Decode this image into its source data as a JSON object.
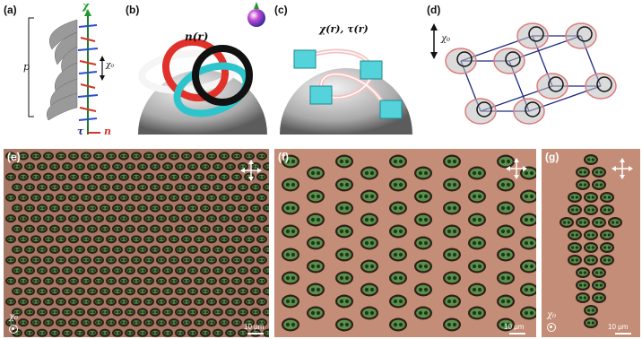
{
  "panels": {
    "a": {
      "label": "(a)",
      "chi": "χ",
      "chi0": "χ₀",
      "p": "p",
      "tau": "τ",
      "n": "n"
    },
    "b": {
      "label": "(b)",
      "title": "n(r)"
    },
    "c": {
      "label": "(c)",
      "title": "χ(r), τ(r)"
    },
    "d": {
      "label": "(d)",
      "chi0": "χ₀"
    },
    "e": {
      "label": "(e)",
      "chi0": "χ₀",
      "scale": "10 μm"
    },
    "f": {
      "label": "(f)",
      "scale": "10 μm"
    },
    "g": {
      "label": "(g)",
      "chi0": "χ₀",
      "scale": "10 μm"
    }
  },
  "colors": {
    "micro_bg": "#b07a62",
    "cell": "#4c7a43",
    "ring": "#2b1c14",
    "red": "#e0322b",
    "cyan": "#2ec4cc",
    "black": "#111111",
    "lattice": "#1d2a80"
  },
  "icons": [
    "crossed-polarizer-icon",
    "chi-out-of-plane-icon"
  ]
}
